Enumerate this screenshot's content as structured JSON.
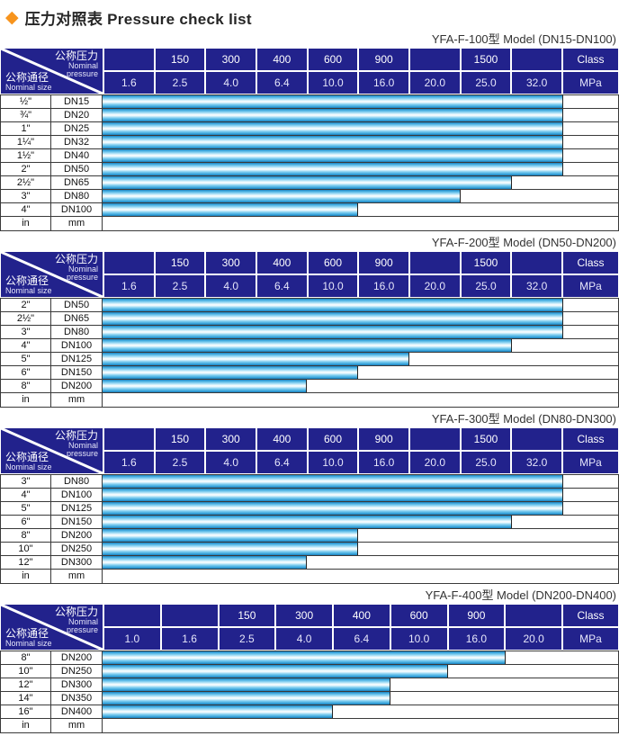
{
  "page": {
    "title": "压力对照表 Pressure check list",
    "diamond_glyph": "◆",
    "colors": {
      "accent_orange": "#F7941D",
      "header_navy": "#22228C",
      "bar_cyan": "#3EA8DD",
      "grid_line": "#3A3A3A"
    }
  },
  "header_labels": {
    "nominal_pressure_zh": "公称压力",
    "nominal_pressure_en1": "Nominal",
    "nominal_pressure_en2": "pressure",
    "nominal_size_zh": "公称通径",
    "nominal_size_en": "Nominal size",
    "class_label": "Class",
    "mpa_label": "MPa"
  },
  "tables": [
    {
      "caption": "YFA-F-100型  Model (DN15-DN100)",
      "class_row": [
        "",
        "150",
        "300",
        "400",
        "600",
        "900",
        "",
        "1500",
        ""
      ],
      "mpa_row": [
        "1.6",
        "2.5",
        "4.0",
        "6.4",
        "10.0",
        "16.0",
        "20.0",
        "25.0",
        "32.0"
      ],
      "rows": [
        {
          "size": "½\"",
          "dn": "DN15",
          "max_mpa": "32.0"
        },
        {
          "size": "¾\"",
          "dn": "DN20",
          "max_mpa": "32.0"
        },
        {
          "size": "1\"",
          "dn": "DN25",
          "max_mpa": "32.0"
        },
        {
          "size": "1¼\"",
          "dn": "DN32",
          "max_mpa": "32.0"
        },
        {
          "size": "1½\"",
          "dn": "DN40",
          "max_mpa": "32.0"
        },
        {
          "size": "2\"",
          "dn": "DN50",
          "max_mpa": "32.0"
        },
        {
          "size": "2½\"",
          "dn": "DN65",
          "max_mpa": "25.0"
        },
        {
          "size": "3\"",
          "dn": "DN80",
          "max_mpa": "20.0"
        },
        {
          "size": "4\"",
          "dn": "DN100",
          "max_mpa": "10.0"
        },
        {
          "size": "in",
          "dn": "mm",
          "max_mpa": null
        }
      ]
    },
    {
      "caption": "YFA-F-200型  Model (DN50-DN200)",
      "class_row": [
        "",
        "150",
        "300",
        "400",
        "600",
        "900",
        "",
        "1500",
        ""
      ],
      "mpa_row": [
        "1.6",
        "2.5",
        "4.0",
        "6.4",
        "10.0",
        "16.0",
        "20.0",
        "25.0",
        "32.0"
      ],
      "rows": [
        {
          "size": "2\"",
          "dn": "DN50",
          "max_mpa": "32.0"
        },
        {
          "size": "2½\"",
          "dn": "DN65",
          "max_mpa": "32.0"
        },
        {
          "size": "3\"",
          "dn": "DN80",
          "max_mpa": "32.0"
        },
        {
          "size": "4\"",
          "dn": "DN100",
          "max_mpa": "25.0"
        },
        {
          "size": "5\"",
          "dn": "DN125",
          "max_mpa": "16.0"
        },
        {
          "size": "6\"",
          "dn": "DN150",
          "max_mpa": "10.0"
        },
        {
          "size": "8\"",
          "dn": "DN200",
          "max_mpa": "6.4"
        },
        {
          "size": "in",
          "dn": "mm",
          "max_mpa": null
        }
      ]
    },
    {
      "caption": "YFA-F-300型  Model (DN80-DN300)",
      "class_row": [
        "",
        "150",
        "300",
        "400",
        "600",
        "900",
        "",
        "1500",
        ""
      ],
      "mpa_row": [
        "1.6",
        "2.5",
        "4.0",
        "6.4",
        "10.0",
        "16.0",
        "20.0",
        "25.0",
        "32.0"
      ],
      "rows": [
        {
          "size": "3\"",
          "dn": "DN80",
          "max_mpa": "32.0"
        },
        {
          "size": "4\"",
          "dn": "DN100",
          "max_mpa": "32.0"
        },
        {
          "size": "5\"",
          "dn": "DN125",
          "max_mpa": "32.0"
        },
        {
          "size": "6\"",
          "dn": "DN150",
          "max_mpa": "25.0"
        },
        {
          "size": "8\"",
          "dn": "DN200",
          "max_mpa": "10.0"
        },
        {
          "size": "10\"",
          "dn": "DN250",
          "max_mpa": "10.0"
        },
        {
          "size": "12\"",
          "dn": "DN300",
          "max_mpa": "6.4"
        },
        {
          "size": "in",
          "dn": "mm",
          "max_mpa": null
        }
      ]
    },
    {
      "caption": "YFA-F-400型  Model (DN200-DN400)",
      "class_row": [
        "",
        "",
        "150",
        "300",
        "400",
        "600",
        "900",
        ""
      ],
      "mpa_row": [
        "1.0",
        "1.6",
        "2.5",
        "4.0",
        "6.4",
        "10.0",
        "16.0",
        "20.0"
      ],
      "rows": [
        {
          "size": "8\"",
          "dn": "DN200",
          "max_mpa": "16.0"
        },
        {
          "size": "10\"",
          "dn": "DN250",
          "max_mpa": "10.0"
        },
        {
          "size": "12\"",
          "dn": "DN300",
          "max_mpa": "6.4"
        },
        {
          "size": "14\"",
          "dn": "DN350",
          "max_mpa": "6.4"
        },
        {
          "size": "16\"",
          "dn": "DN400",
          "max_mpa": "4.0"
        },
        {
          "size": "in",
          "dn": "mm",
          "max_mpa": null
        }
      ]
    }
  ]
}
